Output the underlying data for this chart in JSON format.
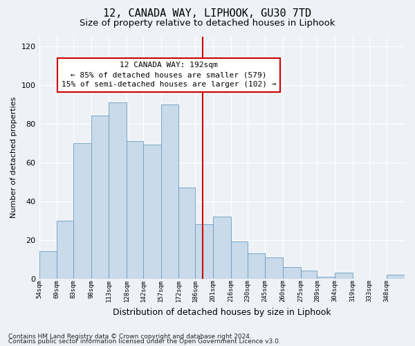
{
  "title1": "12, CANADA WAY, LIPHOOK, GU30 7TD",
  "title2": "Size of property relative to detached houses in Liphook",
  "xlabel": "Distribution of detached houses by size in Liphook",
  "ylabel": "Number of detached properties",
  "footnote1": "Contains HM Land Registry data © Crown copyright and database right 2024.",
  "footnote2": "Contains public sector information licensed under the Open Government Licence v3.0.",
  "bar_labels": [
    "54sqm",
    "69sqm",
    "83sqm",
    "98sqm",
    "113sqm",
    "128sqm",
    "142sqm",
    "157sqm",
    "172sqm",
    "186sqm",
    "201sqm",
    "216sqm",
    "230sqm",
    "245sqm",
    "260sqm",
    "275sqm",
    "289sqm",
    "304sqm",
    "319sqm",
    "333sqm",
    "348sqm"
  ],
  "bin_edges": [
    54,
    69,
    83,
    98,
    113,
    128,
    142,
    157,
    172,
    186,
    201,
    216,
    230,
    245,
    260,
    275,
    289,
    304,
    319,
    333,
    348,
    363
  ],
  "bar_heights": [
    14,
    30,
    70,
    84,
    91,
    71,
    69,
    90,
    47,
    28,
    32,
    19,
    13,
    11,
    6,
    4,
    1,
    3,
    0,
    0,
    2
  ],
  "bar_color": "#c9daea",
  "bar_edge_color": "#6a9ec0",
  "vline_x": 192,
  "vline_color": "#cc0000",
  "annotation_text": "12 CANADA WAY: 192sqm\n← 85% of detached houses are smaller (579)\n15% of semi-detached houses are larger (102) →",
  "annotation_box_color": "#ffffff",
  "annotation_box_edge": "#cc0000",
  "ylim": [
    0,
    125
  ],
  "background_color": "#eef2f7",
  "grid_color": "#ffffff",
  "title1_fontsize": 11,
  "title2_fontsize": 9.5,
  "xlabel_fontsize": 9,
  "ylabel_fontsize": 8,
  "annotation_fontsize": 8,
  "footnote_fontsize": 6.5
}
